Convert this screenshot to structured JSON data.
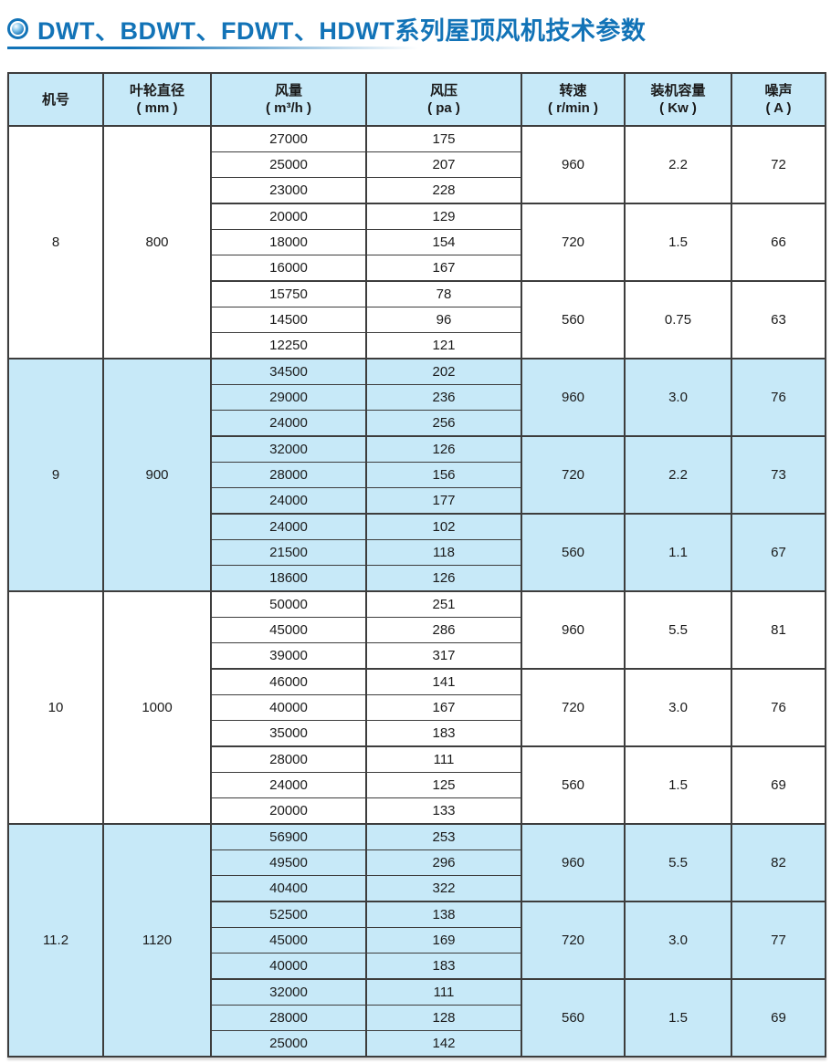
{
  "page": {
    "title": "DWT、BDWT、FDWT、HDWT系列屋顶风机技术参数",
    "accent_color": "#1273b7",
    "stripe_color": "#c7e9f8",
    "border_color": "#3d3d3d",
    "icon": "bullseye-icon"
  },
  "table": {
    "headers": [
      {
        "title": "机号",
        "unit": ""
      },
      {
        "title": "叶轮直径",
        "unit": "( mm )"
      },
      {
        "title": "风量",
        "unit": "( m³/h )"
      },
      {
        "title": "风压",
        "unit": "( pa )"
      },
      {
        "title": "转速",
        "unit": "( r/min )"
      },
      {
        "title": "装机容量",
        "unit": "( Kw )"
      },
      {
        "title": "噪声",
        "unit": "( A )"
      }
    ],
    "groups": [
      {
        "model": "8",
        "diameter": "800",
        "striped": false,
        "subgroups": [
          {
            "speed": "960",
            "power": "2.2",
            "noise": "72",
            "rows": [
              [
                "27000",
                "175"
              ],
              [
                "25000",
                "207"
              ],
              [
                "23000",
                "228"
              ]
            ]
          },
          {
            "speed": "720",
            "power": "1.5",
            "noise": "66",
            "rows": [
              [
                "20000",
                "129"
              ],
              [
                "18000",
                "154"
              ],
              [
                "16000",
                "167"
              ]
            ]
          },
          {
            "speed": "560",
            "power": "0.75",
            "noise": "63",
            "rows": [
              [
                "15750",
                "78"
              ],
              [
                "14500",
                "96"
              ],
              [
                "12250",
                "121"
              ]
            ]
          }
        ]
      },
      {
        "model": "9",
        "diameter": "900",
        "striped": true,
        "subgroups": [
          {
            "speed": "960",
            "power": "3.0",
            "noise": "76",
            "rows": [
              [
                "34500",
                "202"
              ],
              [
                "29000",
                "236"
              ],
              [
                "24000",
                "256"
              ]
            ]
          },
          {
            "speed": "720",
            "power": "2.2",
            "noise": "73",
            "rows": [
              [
                "32000",
                "126"
              ],
              [
                "28000",
                "156"
              ],
              [
                "24000",
                "177"
              ]
            ]
          },
          {
            "speed": "560",
            "power": "1.1",
            "noise": "67",
            "rows": [
              [
                "24000",
                "102"
              ],
              [
                "21500",
                "118"
              ],
              [
                "18600",
                "126"
              ]
            ]
          }
        ]
      },
      {
        "model": "10",
        "diameter": "1000",
        "striped": false,
        "subgroups": [
          {
            "speed": "960",
            "power": "5.5",
            "noise": "81",
            "rows": [
              [
                "50000",
                "251"
              ],
              [
                "45000",
                "286"
              ],
              [
                "39000",
                "317"
              ]
            ]
          },
          {
            "speed": "720",
            "power": "3.0",
            "noise": "76",
            "rows": [
              [
                "46000",
                "141"
              ],
              [
                "40000",
                "167"
              ],
              [
                "35000",
                "183"
              ]
            ]
          },
          {
            "speed": "560",
            "power": "1.5",
            "noise": "69",
            "rows": [
              [
                "28000",
                "111"
              ],
              [
                "24000",
                "125"
              ],
              [
                "20000",
                "133"
              ]
            ]
          }
        ]
      },
      {
        "model": "11.2",
        "diameter": "1120",
        "striped": true,
        "subgroups": [
          {
            "speed": "960",
            "power": "5.5",
            "noise": "82",
            "rows": [
              [
                "56900",
                "253"
              ],
              [
                "49500",
                "296"
              ],
              [
                "40400",
                "322"
              ]
            ]
          },
          {
            "speed": "720",
            "power": "3.0",
            "noise": "77",
            "rows": [
              [
                "52500",
                "138"
              ],
              [
                "45000",
                "169"
              ],
              [
                "40000",
                "183"
              ]
            ]
          },
          {
            "speed": "560",
            "power": "1.5",
            "noise": "69",
            "rows": [
              [
                "32000",
                "111"
              ],
              [
                "28000",
                "128"
              ],
              [
                "25000",
                "142"
              ]
            ]
          }
        ]
      }
    ]
  }
}
